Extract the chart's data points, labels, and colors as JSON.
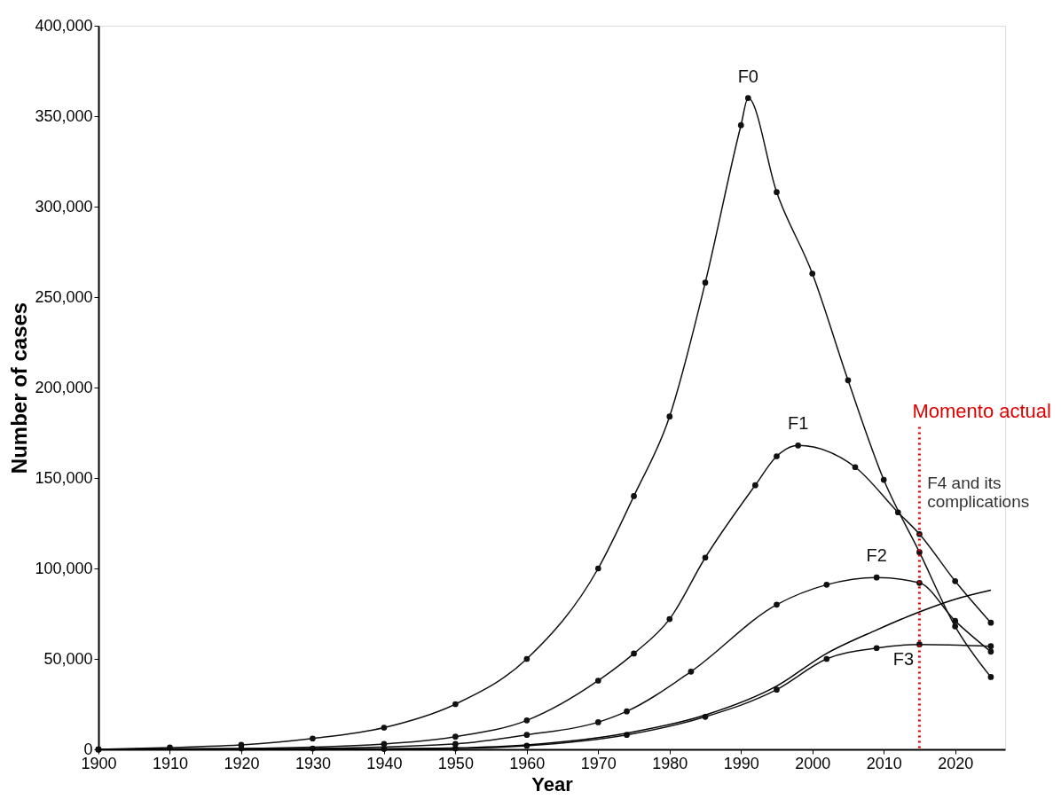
{
  "chart_data": {
    "type": "line",
    "xlabel": "Year",
    "ylabel": "Number of cases",
    "xlim": [
      1900,
      2027
    ],
    "xticks": [
      1900,
      1910,
      1920,
      1930,
      1940,
      1950,
      1960,
      1970,
      1980,
      1990,
      2000,
      2010,
      2020
    ],
    "ylim": [
      0,
      400000
    ],
    "yticks": [
      {
        "value": 0,
        "label": "0"
      },
      {
        "value": 50000,
        "label": "50,000"
      },
      {
        "value": 100000,
        "label": "100,000"
      },
      {
        "value": 150000,
        "label": "150,000"
      },
      {
        "value": 200000,
        "label": "200,000"
      },
      {
        "value": 250000,
        "label": "250,000"
      },
      {
        "value": 300000,
        "label": "300,000"
      },
      {
        "value": 350000,
        "label": "350,000"
      },
      {
        "value": 400000,
        "label": "400,000"
      }
    ],
    "series": [
      {
        "name": "F0",
        "color": "#111111",
        "marker": "circle",
        "x": [
          1900,
          1910,
          1920,
          1930,
          1940,
          1950,
          1960,
          1970,
          1975,
          1980,
          1985,
          1990,
          1991,
          1995,
          2000,
          2005,
          2010,
          2015,
          2020,
          2025
        ],
        "values": [
          0,
          1000,
          2500,
          6000,
          12000,
          25000,
          50000,
          100000,
          140000,
          184000,
          258000,
          345000,
          360000,
          308000,
          263000,
          204000,
          149000,
          109000,
          68000,
          40000
        ]
      },
      {
        "name": "F1",
        "color": "#111111",
        "marker": "circle",
        "x": [
          1900,
          1920,
          1940,
          1950,
          1960,
          1970,
          1975,
          1980,
          1985,
          1992,
          1995,
          1998,
          2006,
          2012,
          2015,
          2020,
          2025
        ],
        "values": [
          0,
          500,
          3000,
          7000,
          16000,
          38000,
          53000,
          72000,
          106000,
          146000,
          162000,
          168000,
          156000,
          131000,
          119000,
          93000,
          70000
        ]
      },
      {
        "name": "F2",
        "color": "#111111",
        "marker": "circle",
        "x": [
          1900,
          1930,
          1950,
          1960,
          1970,
          1974,
          1983,
          1995,
          2002,
          2009,
          2015,
          2020,
          2025
        ],
        "values": [
          0,
          500,
          3000,
          8000,
          15000,
          21000,
          43000,
          80000,
          91000,
          95000,
          92000,
          71000,
          54000
        ]
      },
      {
        "name": "F3",
        "color": "#111111",
        "marker": "circle",
        "x": [
          1900,
          1940,
          1950,
          1960,
          1974,
          1985,
          1995,
          2002,
          2009,
          2015,
          2025
        ],
        "values": [
          0,
          200,
          500,
          2000,
          8000,
          18000,
          33000,
          50000,
          56000,
          58000,
          57000
        ]
      },
      {
        "color": "#000000",
        "marker": "none",
        "x": [
          1900,
          1940,
          1950,
          1960,
          1974,
          1985,
          1995,
          2002,
          2009,
          2015,
          2020,
          2025
        ],
        "values": [
          0,
          300,
          800,
          2500,
          9000,
          19000,
          35000,
          53000,
          66000,
          76000,
          83000,
          88000
        ]
      }
    ],
    "ref_lines": [
      {
        "axis": "x",
        "value": 2015,
        "label": "Momento actual",
        "color": "#e00000",
        "line_style": "dotted"
      }
    ],
    "annotations": [
      "F4 and its complications"
    ]
  }
}
